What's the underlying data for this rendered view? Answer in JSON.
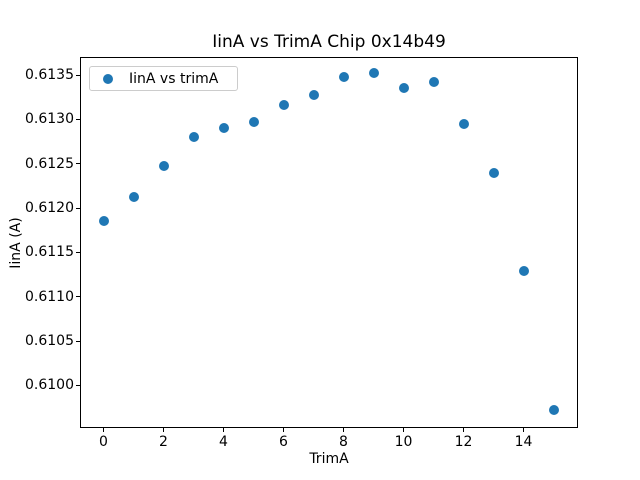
{
  "chart_data": {
    "type": "scatter",
    "title": "IinA vs TrimA Chip 0x14b49",
    "xlabel": "TrimA",
    "ylabel": "IinA (A)",
    "legend": {
      "position": "upper left",
      "entries": [
        {
          "label": "IinA vs trimA",
          "marker": "circle",
          "color": "#1f77b4"
        }
      ]
    },
    "marker_color": "#1f77b4",
    "grid": false,
    "x": [
      0,
      1,
      2,
      3,
      4,
      5,
      6,
      7,
      8,
      9,
      10,
      11,
      12,
      13,
      14,
      15
    ],
    "y": [
      0.61186,
      0.61212,
      0.61248,
      0.6128,
      0.6129,
      0.61297,
      0.61316,
      0.61327,
      0.61348,
      0.61352,
      0.61335,
      0.61342,
      0.61295,
      0.6124,
      0.61129,
      0.60972
    ],
    "series_name": "IinA vs trimA",
    "xlim": [
      -0.75,
      15.75
    ],
    "ylim": [
      0.609532,
      0.613692
    ],
    "xtick_values": [
      0,
      2,
      4,
      6,
      8,
      10,
      12,
      14
    ],
    "xtick_labels": [
      "0",
      "2",
      "4",
      "6",
      "8",
      "10",
      "12",
      "14"
    ],
    "ytick_values": [
      0.6135,
      0.613,
      0.6125,
      0.612,
      0.6115,
      0.611,
      0.6105,
      0.61
    ],
    "ytick_labels": [
      "0.6135",
      "0.6130",
      "0.6125",
      "0.6120",
      "0.6115",
      "0.6110",
      "0.6105",
      "0.6100"
    ]
  }
}
